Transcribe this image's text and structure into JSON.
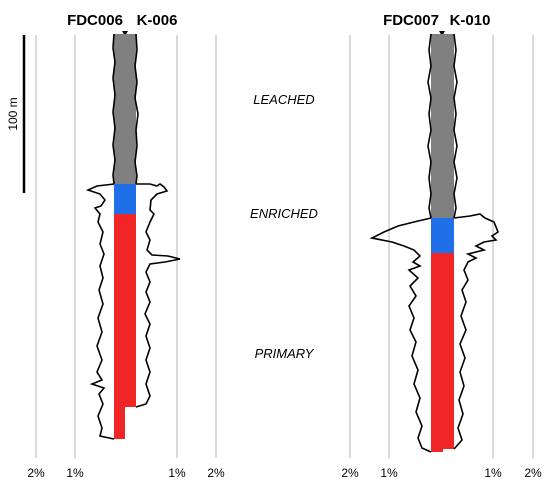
{
  "wells": [
    {
      "name": "FDC006",
      "hole": "K-006",
      "pct_ticks": [
        "2%",
        "1%",
        "1%",
        "2%"
      ],
      "sections": [
        {
          "type": "leached",
          "color": "#808080"
        },
        {
          "type": "enriched",
          "color": "#1f6fe8"
        },
        {
          "type": "primary",
          "color": "#f02626"
        }
      ]
    },
    {
      "name": "FDC007",
      "hole": "K-010",
      "pct_ticks": [
        "2%",
        "1%",
        "1%",
        "2%"
      ],
      "sections": [
        {
          "type": "leached",
          "color": "#808080"
        },
        {
          "type": "enriched",
          "color": "#1f6fe8"
        },
        {
          "type": "primary",
          "color": "#f02626"
        }
      ]
    }
  ],
  "zones": {
    "leached": "LEACHED",
    "enriched": "ENRICHED",
    "primary": "PRIMARY"
  },
  "scale_bar": {
    "label": "100 m",
    "length_m": 100
  },
  "colors": {
    "leached": "#808080",
    "enriched": "#1f6fe8",
    "primary": "#f02626",
    "gridline": "#b4b4b4",
    "profile": "#000000"
  }
}
